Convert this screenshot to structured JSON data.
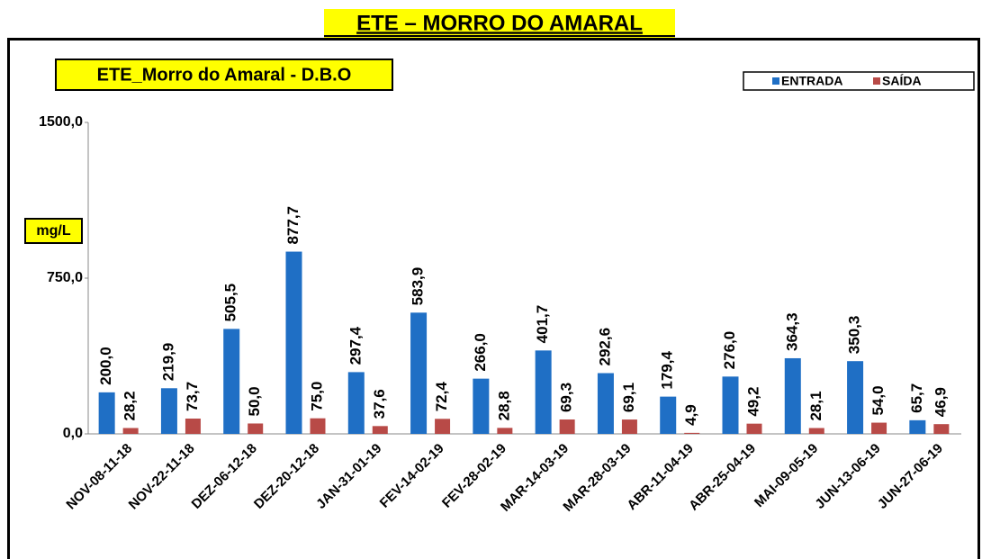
{
  "header": {
    "title": "ETE – MORRO DO AMARAL"
  },
  "chart_data": {
    "type": "bar",
    "title": "ETE_Morro do Amaral - D.B.O",
    "y_label": "mg/L",
    "categories": [
      "NOV-08-11-18",
      "NOV-22-11-18",
      "DEZ-06-12-18",
      "DEZ-20-12-18",
      "JAN-31-01-19",
      "FEV-14-02-19",
      "FEV-28-02-19",
      "MAR-14-03-19",
      "MAR-28-03-19",
      "ABR-11-04-19",
      "ABR-25-04-19",
      "MAI-09-05-19",
      "JUN-13-06-19",
      "JUN-27-06-19"
    ],
    "series": [
      {
        "name": "ENTRADA",
        "color": "#1f6fc5",
        "values": [
          200.0,
          219.9,
          505.5,
          877.7,
          297.4,
          583.9,
          266.0,
          401.7,
          292.6,
          179.4,
          276.0,
          364.3,
          350.3,
          65.7
        ],
        "value_labels": [
          "200,0",
          "219,9",
          "505,5",
          "877,7",
          "297,4",
          "583,9",
          "266,0",
          "401,7",
          "292,6",
          "179,4",
          "276,0",
          "364,3",
          "350,3",
          "65,7"
        ]
      },
      {
        "name": "SAÍDA",
        "color": "#b84a47",
        "values": [
          28.2,
          73.7,
          50.0,
          75.0,
          37.6,
          72.4,
          28.8,
          69.3,
          69.1,
          4.9,
          49.2,
          28.1,
          54.0,
          46.9
        ],
        "value_labels": [
          "28,2",
          "73,7",
          "50,0",
          "75,0",
          "37,6",
          "72,4",
          "28,8",
          "69,3",
          "69,1",
          "4,9",
          "49,2",
          "28,1",
          "54,0",
          "46,9"
        ]
      }
    ],
    "ylim": [
      0,
      1500
    ],
    "yticks": [
      {
        "value": 0,
        "label": "0,0"
      },
      {
        "value": 750,
        "label": "750,0"
      },
      {
        "value": 1500,
        "label": "1500,0"
      }
    ],
    "grid": false,
    "legend": "top-right"
  }
}
